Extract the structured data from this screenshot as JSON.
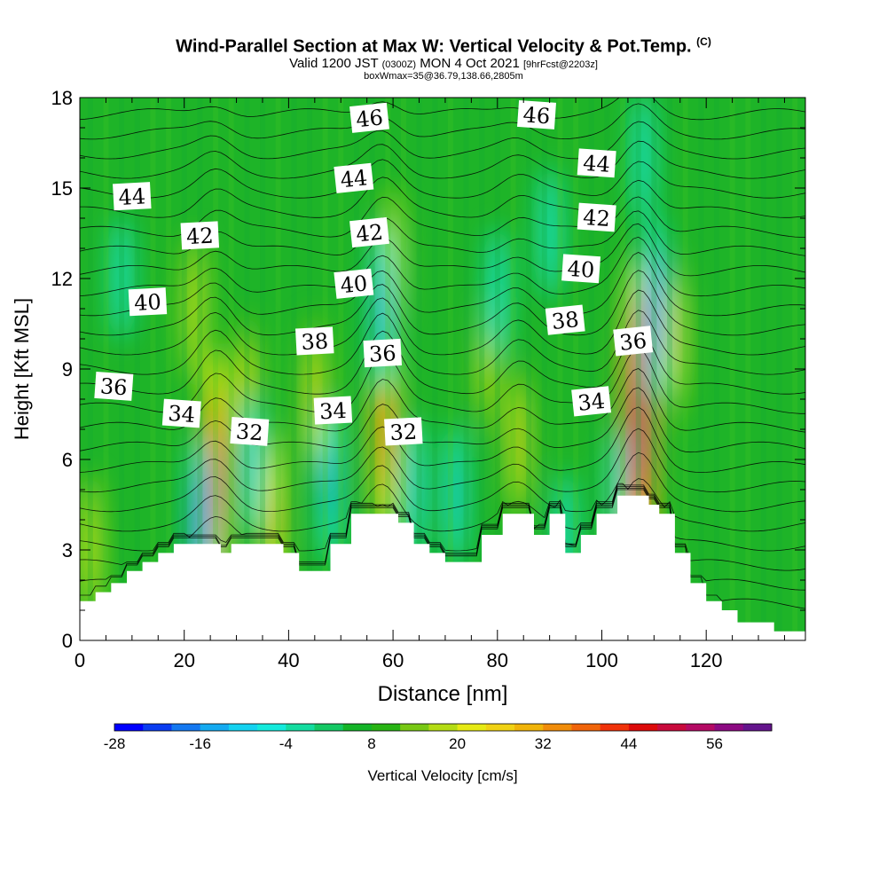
{
  "header": {
    "title": "Wind-Parallel Section at Max W: Vertical Velocity & Pot.Temp.",
    "title_tag": "(C)",
    "subtitle_main_1": "Valid 1200 JST",
    "subtitle_small_1": "(0300Z)",
    "subtitle_main_2": "MON 4 Oct 2021",
    "subtitle_small_2": "[9hrFcst@2203z]",
    "subsub": "boxWmax=35@36.79,138.66,2805m"
  },
  "chart_data": {
    "type": "heatmap",
    "title": "Wind-Parallel Section at Max W: Vertical Velocity & Pot.Temp.",
    "xlabel": "Distance [nm]",
    "ylabel": "Height [Kft MSL]",
    "xlim": [
      0,
      139
    ],
    "ylim": [
      0,
      18
    ],
    "x_ticks": [
      "0",
      "20",
      "40",
      "60",
      "80",
      "100",
      "120"
    ],
    "y_ticks": [
      "0",
      "3",
      "6",
      "9",
      "12",
      "15",
      "18"
    ],
    "colorbar": {
      "label": "Vertical Velocity [cm/s]",
      "min": -28,
      "max": 60,
      "step": 4,
      "tick_labels": [
        "-28",
        "-16",
        "-4",
        "8",
        "20",
        "32",
        "44",
        "56"
      ],
      "colors": [
        "#0000ff",
        "#0a3cf0",
        "#1478f0",
        "#14aaf0",
        "#14d2f0",
        "#14eadc",
        "#14dca0",
        "#14c864",
        "#14b428",
        "#28b414",
        "#78c814",
        "#b4dc14",
        "#e6ea14",
        "#f0d214",
        "#f0b40a",
        "#f08c0a",
        "#f0640a",
        "#f0320a",
        "#dc0a0a",
        "#c80a3c",
        "#b40a64",
        "#8c0a82",
        "#64148c"
      ]
    },
    "theta_contours": {
      "name": "Pot.Temp.",
      "labels": [
        {
          "value": "46",
          "x": 55.5,
          "y": 17.3
        },
        {
          "value": "46",
          "x": 87.5,
          "y": 17.4
        },
        {
          "value": "44",
          "x": 10,
          "y": 14.7
        },
        {
          "value": "44",
          "x": 52.5,
          "y": 15.3
        },
        {
          "value": "44",
          "x": 99,
          "y": 15.8
        },
        {
          "value": "42",
          "x": 23,
          "y": 13.4
        },
        {
          "value": "42",
          "x": 55.5,
          "y": 13.5
        },
        {
          "value": "42",
          "x": 99,
          "y": 14.0
        },
        {
          "value": "40",
          "x": 13,
          "y": 11.2
        },
        {
          "value": "40",
          "x": 52.5,
          "y": 11.8
        },
        {
          "value": "40",
          "x": 96,
          "y": 12.3
        },
        {
          "value": "38",
          "x": 45,
          "y": 9.9
        },
        {
          "value": "38",
          "x": 93,
          "y": 10.6
        },
        {
          "value": "36",
          "x": 6.5,
          "y": 8.4
        },
        {
          "value": "36",
          "x": 58,
          "y": 9.5
        },
        {
          "value": "36",
          "x": 106,
          "y": 9.9
        },
        {
          "value": "34",
          "x": 19.5,
          "y": 7.5
        },
        {
          "value": "34",
          "x": 48.5,
          "y": 7.6
        },
        {
          "value": "34",
          "x": 98,
          "y": 7.9
        },
        {
          "value": "32",
          "x": 32.5,
          "y": 6.9
        },
        {
          "value": "32",
          "x": 62,
          "y": 6.9
        }
      ]
    },
    "w_features": [
      {
        "x": 26,
        "y": 5.5,
        "w": 36
      },
      {
        "x": 58.5,
        "y": 7.0,
        "w": 32
      },
      {
        "x": 107,
        "y": 7.0,
        "w": 56
      },
      {
        "x": 84,
        "y": 6.5,
        "w": 16
      },
      {
        "x": 32,
        "y": 8.0,
        "w": 16
      },
      {
        "x": 45,
        "y": 8.0,
        "w": 16
      },
      {
        "x": 114,
        "y": 10.0,
        "w": 16
      },
      {
        "x": 60,
        "y": 12.5,
        "w": 12
      },
      {
        "x": 78,
        "y": 9.0,
        "w": 10
      },
      {
        "x": 22,
        "y": 11.0,
        "w": 12
      },
      {
        "x": 37,
        "y": 4.0,
        "w": 20
      },
      {
        "x": 23,
        "y": 3.7,
        "w": -20
      },
      {
        "x": 58,
        "y": 11.0,
        "w": -16
      },
      {
        "x": 110,
        "y": 11.0,
        "w": -20
      },
      {
        "x": 64,
        "y": 5.0,
        "w": -10
      },
      {
        "x": 72,
        "y": 4.8,
        "w": -10
      },
      {
        "x": 48,
        "y": 5.2,
        "w": -14
      },
      {
        "x": 33,
        "y": 5.8,
        "w": -10
      },
      {
        "x": 80,
        "y": 11.5,
        "w": -8
      },
      {
        "x": 90,
        "y": 13.5,
        "w": -8
      },
      {
        "x": 108,
        "y": 16.0,
        "w": -8
      },
      {
        "x": 8,
        "y": 12.0,
        "w": -6
      },
      {
        "x": 103,
        "y": 5.0,
        "w": -6
      },
      {
        "x": 2,
        "y": 3.0,
        "w": 12
      },
      {
        "x": 93,
        "y": 3.5,
        "w": -6
      }
    ],
    "terrain": [
      [
        0,
        1.3
      ],
      [
        3,
        1.3
      ],
      [
        3,
        1.6
      ],
      [
        6,
        1.6
      ],
      [
        6,
        1.9
      ],
      [
        9,
        1.9
      ],
      [
        9,
        2.3
      ],
      [
        12,
        2.3
      ],
      [
        12,
        2.6
      ],
      [
        15,
        2.6
      ],
      [
        15,
        2.9
      ],
      [
        18,
        2.9
      ],
      [
        18,
        3.2
      ],
      [
        27,
        3.2
      ],
      [
        27,
        2.9
      ],
      [
        29,
        2.9
      ],
      [
        29,
        3.2
      ],
      [
        39,
        3.2
      ],
      [
        39,
        2.9
      ],
      [
        42,
        2.9
      ],
      [
        42,
        2.3
      ],
      [
        48,
        2.3
      ],
      [
        48,
        3.2
      ],
      [
        52,
        3.2
      ],
      [
        52,
        4.2
      ],
      [
        61,
        4.2
      ],
      [
        61,
        3.9
      ],
      [
        64,
        3.9
      ],
      [
        64,
        3.2
      ],
      [
        67,
        3.2
      ],
      [
        67,
        2.9
      ],
      [
        70,
        2.9
      ],
      [
        70,
        2.6
      ],
      [
        77,
        2.6
      ],
      [
        77,
        3.5
      ],
      [
        81,
        3.5
      ],
      [
        81,
        4.2
      ],
      [
        87,
        4.2
      ],
      [
        87,
        3.5
      ],
      [
        90,
        3.5
      ],
      [
        90,
        4.2
      ],
      [
        93,
        4.2
      ],
      [
        93,
        2.9
      ],
      [
        96,
        2.9
      ],
      [
        96,
        3.5
      ],
      [
        99,
        3.5
      ],
      [
        99,
        4.2
      ],
      [
        103,
        4.2
      ],
      [
        103,
        4.8
      ],
      [
        109,
        4.8
      ],
      [
        109,
        4.5
      ],
      [
        111,
        4.5
      ],
      [
        111,
        4.2
      ],
      [
        114,
        4.2
      ],
      [
        114,
        2.9
      ],
      [
        117,
        2.9
      ],
      [
        117,
        1.9
      ],
      [
        120,
        1.9
      ],
      [
        120,
        1.3
      ],
      [
        123,
        1.3
      ],
      [
        123,
        1.0
      ],
      [
        126,
        1.0
      ],
      [
        126,
        0.6
      ],
      [
        133,
        0.6
      ],
      [
        133,
        0.3
      ],
      [
        139,
        0.3
      ]
    ]
  }
}
